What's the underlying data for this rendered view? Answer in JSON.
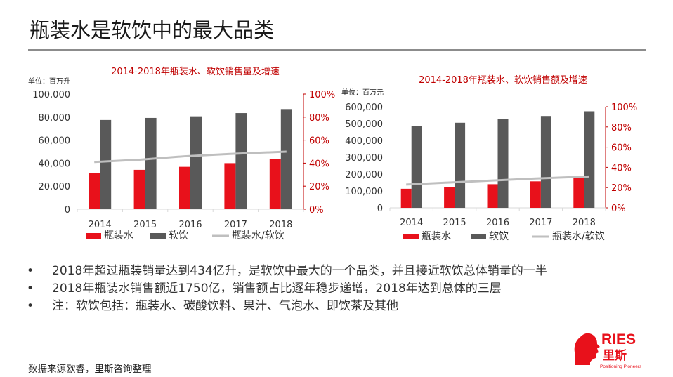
{
  "page": {
    "title": "瓶装水是软饮中的最大品类",
    "bullets": [
      "2018年超过瓶装销量达到434亿升，是软饮中最大的一个品类，并且接近软饮总体销量的一半",
      "2018年瓶装水销售额近1750亿，销售额占比逐年稳步递增，2018年达到总体的三层",
      "注：软饮包括：瓶装水、碳酸饮料、果汁、气泡水、即饮茶及其他"
    ],
    "source": "数据来源欧睿，里斯咨询整理",
    "logo": {
      "text": "RIES",
      "cn": "里斯",
      "tagline": "Positioning Pioneers"
    }
  },
  "colors": {
    "bottled_water": "#e8111b",
    "soft_drink": "#595959",
    "ratio_line": "#bfbfbf",
    "title_red": "#c00000",
    "secondary_axis": "#c00000"
  },
  "chart_data": [
    {
      "type": "bar",
      "title": "2014-2018年瓶装水、软饮销售量及增速",
      "unit": "单位：百万升",
      "categories": [
        "2014",
        "2015",
        "2016",
        "2017",
        "2018"
      ],
      "series": [
        {
          "name": "瓶装水",
          "type": "bar",
          "values": [
            31500,
            34200,
            36800,
            40000,
            43400
          ]
        },
        {
          "name": "软饮",
          "type": "bar",
          "values": [
            77500,
            79300,
            80700,
            83500,
            87000
          ]
        },
        {
          "name": "瓶装水/软饮",
          "type": "line",
          "axis": "secondary",
          "values": [
            0.41,
            0.43,
            0.46,
            0.48,
            0.5
          ]
        }
      ],
      "ylim": [
        0,
        100000
      ],
      "yticks": [
        "0",
        "20,000",
        "40,000",
        "60,000",
        "80,000",
        "100,000"
      ],
      "y2lim": [
        0,
        1
      ],
      "y2ticks": [
        "0%",
        "20%",
        "40%",
        "60%",
        "80%",
        "100%"
      ],
      "legend": "bottom",
      "grid": false
    },
    {
      "type": "bar",
      "title": "2014-2018年瓶装水、软饮销售额及增速",
      "unit": "单位：百万元",
      "categories": [
        "2014",
        "2015",
        "2016",
        "2017",
        "2018"
      ],
      "series": [
        {
          "name": "瓶装水",
          "type": "bar",
          "values": [
            113000,
            125000,
            140000,
            157000,
            175000
          ]
        },
        {
          "name": "软饮",
          "type": "bar",
          "values": [
            487000,
            505000,
            525000,
            545000,
            573000
          ]
        },
        {
          "name": "瓶装水/软饮",
          "type": "line",
          "axis": "secondary",
          "values": [
            0.23,
            0.25,
            0.27,
            0.29,
            0.31
          ]
        }
      ],
      "ylim": [
        0,
        600000
      ],
      "yticks": [
        "0",
        "100,000",
        "200,000",
        "300,000",
        "400,000",
        "500,000",
        "600,000"
      ],
      "y2lim": [
        0,
        1
      ],
      "y2ticks": [
        "0%",
        "20%",
        "40%",
        "60%",
        "80%",
        "100%"
      ],
      "legend": "bottom",
      "grid": false
    }
  ]
}
